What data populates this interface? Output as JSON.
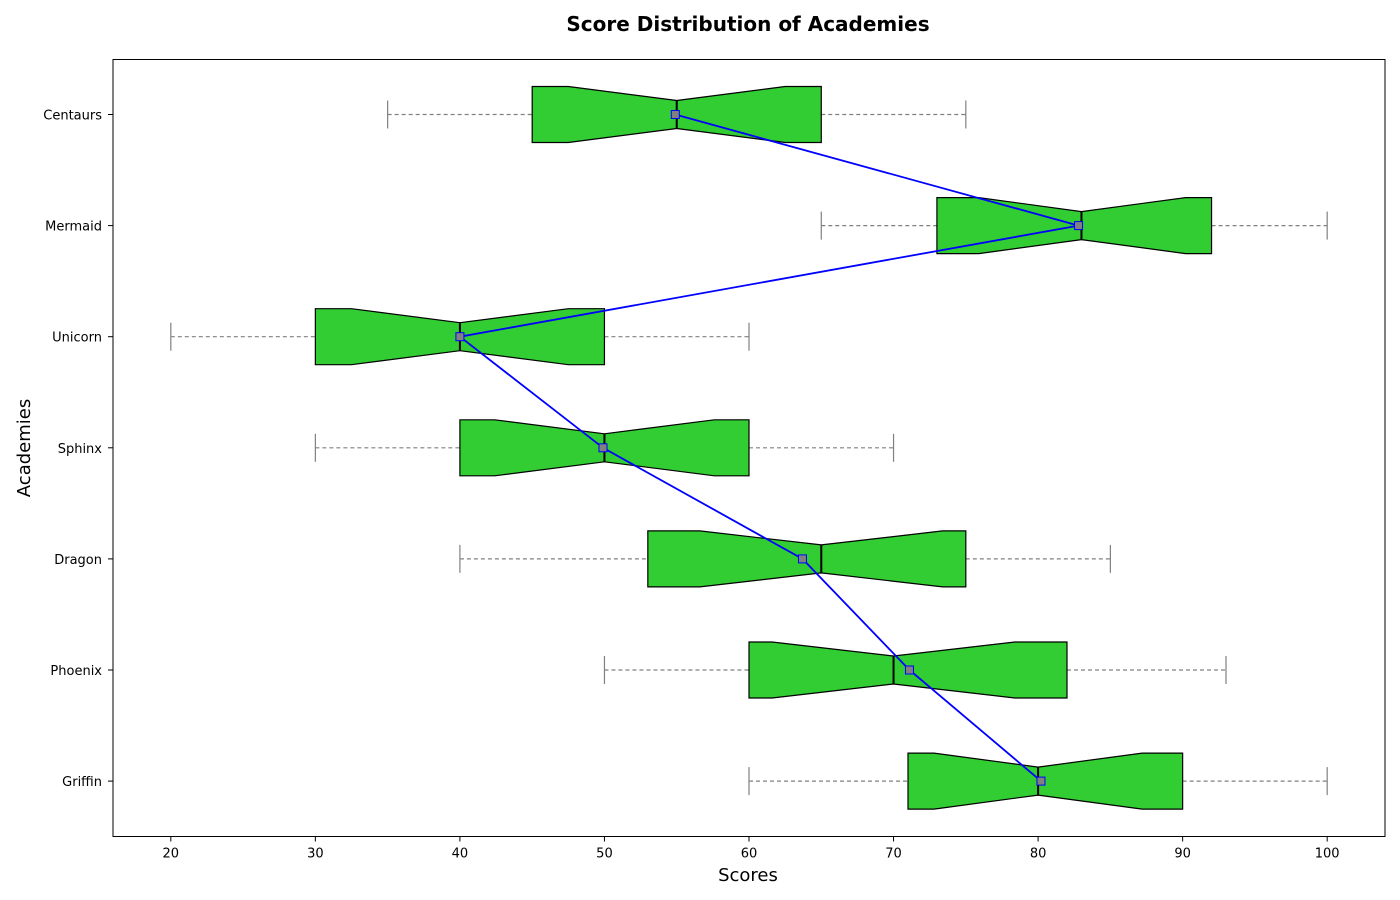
{
  "chart_data": {
    "type": "box",
    "orientation": "horizontal",
    "notched": true,
    "title": "Score Distribution of Academies",
    "xlabel": "Scores",
    "ylabel": "Academies",
    "xlim": [
      16,
      104
    ],
    "xticks": [
      20,
      30,
      40,
      50,
      60,
      70,
      80,
      90,
      100
    ],
    "grid": false,
    "box_color": "#32CD32",
    "edge_color": "#000000",
    "whisker_color": "#808080",
    "mean_line_color": "#0000FF",
    "mean_marker_color": "#808080",
    "categories": [
      "Centaurs",
      "Mermaid",
      "Unicorn",
      "Sphinx",
      "Dragon",
      "Phoenix",
      "Griffin"
    ],
    "boxes": [
      {
        "name": "Centaurs",
        "whislo": 35,
        "q1": 45,
        "med": 55,
        "q3": 65,
        "whishi": 75,
        "notch_lo": 47.5,
        "notch_hi": 62.5,
        "mean": 54.9
      },
      {
        "name": "Mermaid",
        "whislo": 65,
        "q1": 73,
        "med": 83,
        "q3": 92,
        "whishi": 100,
        "notch_lo": 75.9,
        "notch_hi": 90.2,
        "mean": 82.8
      },
      {
        "name": "Unicorn",
        "whislo": 20,
        "q1": 30,
        "med": 40,
        "q3": 50,
        "whishi": 60,
        "notch_lo": 32.5,
        "notch_hi": 47.5,
        "mean": 40.0
      },
      {
        "name": "Sphinx",
        "whislo": 30,
        "q1": 40,
        "med": 50,
        "q3": 60,
        "whishi": 70,
        "notch_lo": 42.4,
        "notch_hi": 57.6,
        "mean": 49.9
      },
      {
        "name": "Dragon",
        "whislo": 40,
        "q1": 53,
        "med": 65,
        "q3": 75,
        "whishi": 85,
        "notch_lo": 56.6,
        "notch_hi": 73.4,
        "mean": 63.7
      },
      {
        "name": "Phoenix",
        "whislo": 50,
        "q1": 60,
        "med": 70,
        "q3": 82,
        "whishi": 93,
        "notch_lo": 61.6,
        "notch_hi": 78.4,
        "mean": 71.1
      },
      {
        "name": "Griffin",
        "whislo": 60,
        "q1": 71,
        "med": 80,
        "q3": 90,
        "whishi": 100,
        "notch_lo": 72.8,
        "notch_hi": 87.2,
        "mean": 80.2
      }
    ]
  }
}
